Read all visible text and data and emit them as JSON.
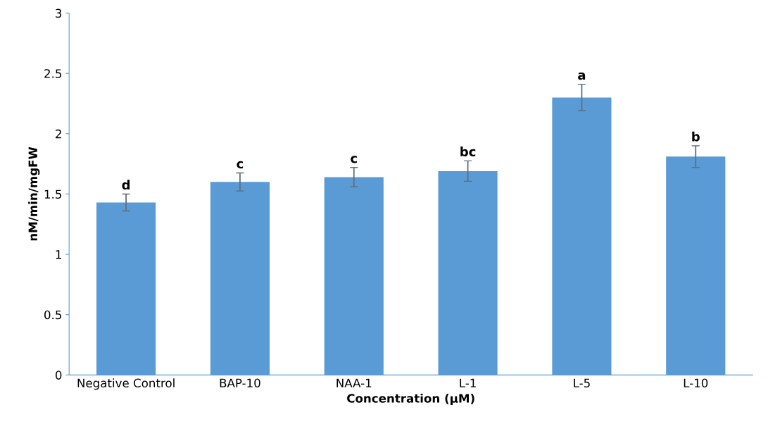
{
  "chart_data": {
    "type": "bar",
    "xlabel": "Concentration (µM)",
    "ylabel": "nM/min/mgFW",
    "categories": [
      "Negative Control",
      "BAP-10",
      "NAA-1",
      "L-1",
      "L-5",
      "L-10"
    ],
    "values": [
      1.43,
      1.6,
      1.64,
      1.69,
      2.3,
      1.81
    ],
    "errors": [
      0.07,
      0.075,
      0.08,
      0.085,
      0.11,
      0.09
    ],
    "color": "#5b9bd5",
    "ylim": [
      0,
      3
    ],
    "yticks": [
      0,
      0.5,
      1,
      1.5,
      2,
      2.5,
      3
    ],
    "grid": false,
    "annotations": [
      "d",
      "c",
      "c",
      "bc",
      "a",
      "b"
    ]
  }
}
